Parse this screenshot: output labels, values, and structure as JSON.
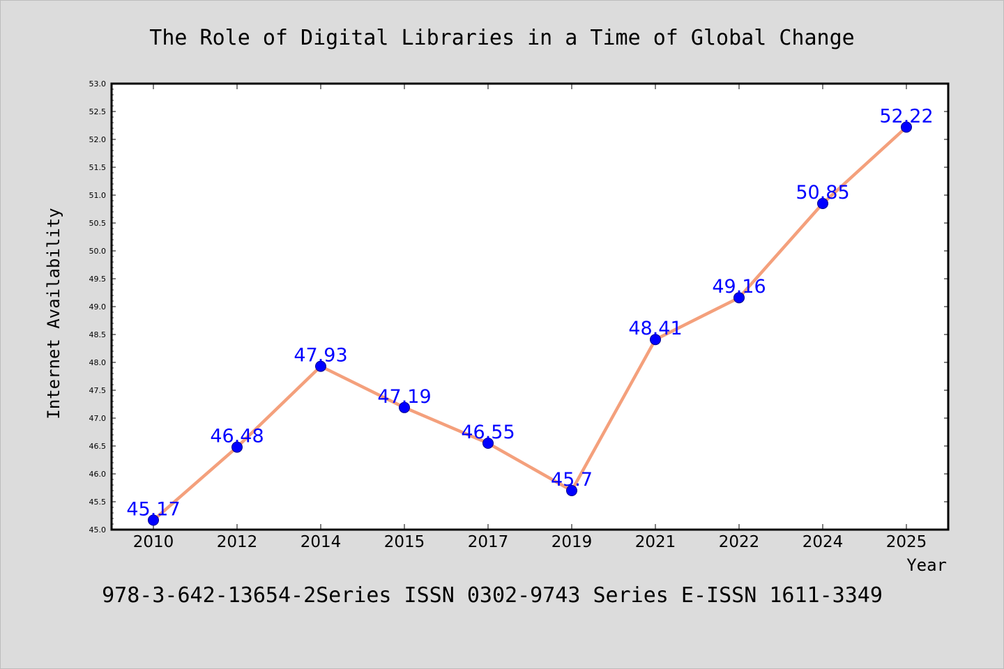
{
  "chart_data": {
    "type": "line",
    "title": "The Role of Digital Libraries in a Time of Global Change",
    "xlabel": "Year",
    "ylabel": "Internet Availability",
    "footer": "978-3-642-13654-2Series ISSN 0302-9743 Series E-ISSN 1611-3349",
    "categories": [
      "2010",
      "2012",
      "2014",
      "2015",
      "2017",
      "2019",
      "2021",
      "2022",
      "2024",
      "2025"
    ],
    "values": [
      45.17,
      46.48,
      47.93,
      47.19,
      46.55,
      45.7,
      48.41,
      49.16,
      50.85,
      52.22
    ],
    "data_labels": [
      "45.17",
      "46.48",
      "47.93",
      "47.19",
      "46.55",
      "45.7",
      "48.41",
      "49.16",
      "50.85",
      "52.22"
    ],
    "ylim": [
      45.0,
      53.0
    ],
    "y_ticks": [
      "45.0",
      "45.5",
      "46.0",
      "46.5",
      "47.0",
      "47.5",
      "48.0",
      "48.5",
      "49.0",
      "49.5",
      "50.0",
      "50.5",
      "51.0",
      "51.5",
      "52.0",
      "52.5",
      "53.0"
    ],
    "grid": false,
    "legend": "none",
    "colors": {
      "figure_background": "#dcdcdc",
      "plot_background": "#ffffff",
      "line": "#f4a07c",
      "marker": "#0000ff",
      "marker_edge": "#00008b",
      "data_label": "#0000ff",
      "text": "#000000"
    }
  }
}
